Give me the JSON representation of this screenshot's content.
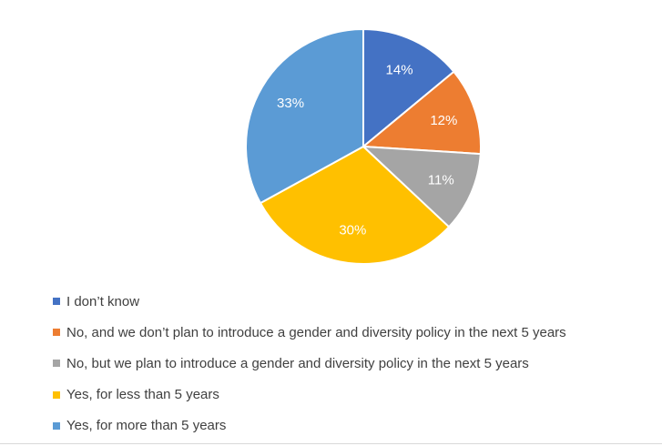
{
  "chart_data": {
    "type": "pie",
    "title": "",
    "start_angle_deg": 0,
    "direction": "clockwise",
    "legend_position": "bottom",
    "label_color": "#ffffff",
    "slices": [
      {
        "label": "I don’t know",
        "value": 14,
        "display": "14%",
        "color": "#4472c4"
      },
      {
        "label": "No, and we don’t plan to introduce a gender and diversity policy in the next 5 years",
        "value": 12,
        "display": "12%",
        "color": "#ed7d31"
      },
      {
        "label": "No, but we plan to introduce a gender and diversity policy in the next 5 years",
        "value": 11,
        "display": "11%",
        "color": "#a5a5a5"
      },
      {
        "label": "Yes, for less than 5 years",
        "value": 30,
        "display": "30%",
        "color": "#ffc000"
      },
      {
        "label": "Yes, for more than 5 years",
        "value": 33,
        "display": "33%",
        "color": "#5b9bd5"
      }
    ]
  }
}
